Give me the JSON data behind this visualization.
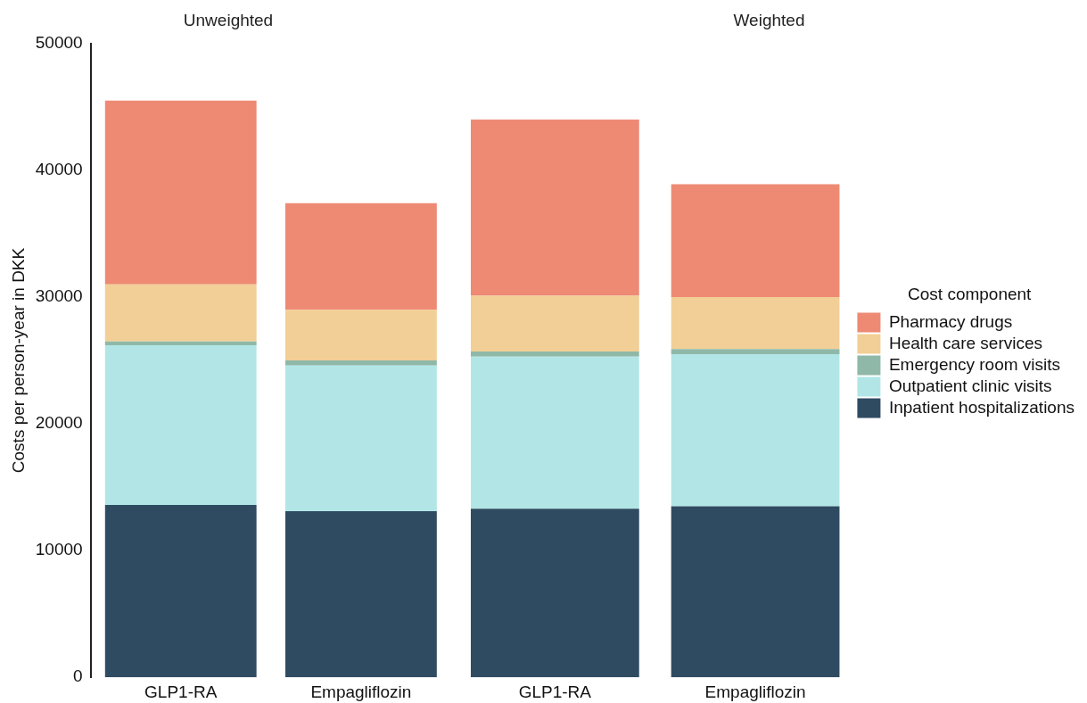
{
  "chart_data": [
    {
      "type": "bar",
      "title": "Unweighted",
      "ylabel": "Costs per person-year in DKK",
      "categories": [
        "GLP1-RA",
        "Empagliflozin"
      ],
      "stacked": true,
      "ylim": [
        0,
        50000
      ],
      "yticks": [
        0,
        10000,
        20000,
        30000,
        40000,
        50000
      ],
      "grid": false,
      "legend": false,
      "series": [
        {
          "color": "#2f4b62",
          "values": [
            13600,
            13100
          ]
        },
        {
          "color": "#b2e6e6",
          "values": [
            12600,
            11500
          ]
        },
        {
          "color": "#8fb8a8",
          "values": [
            300,
            400
          ]
        },
        {
          "color": "#f2cf96",
          "values": [
            4500,
            4000
          ]
        },
        {
          "color": "#ee8a74",
          "values": [
            14500,
            8400
          ]
        }
      ]
    },
    {
      "type": "bar",
      "title": "Weighted",
      "legend_title": "Cost component",
      "categories": [
        "GLP1-RA",
        "Empagliflozin"
      ],
      "stacked": true,
      "ylim": [
        0,
        50000
      ],
      "yticks": [
        0,
        10000,
        20000,
        30000,
        40000,
        50000
      ],
      "tick_labels": "x",
      "grid": false,
      "legend": "right",
      "series": [
        {
          "name": "Inpatient hospitalizations",
          "color": "#2f4b62",
          "values": [
            13300,
            13500
          ]
        },
        {
          "name": "Outpatient clinic visits",
          "color": "#b2e6e6",
          "values": [
            12000,
            12000
          ]
        },
        {
          "name": "Emergency room visits",
          "color": "#8fb8a8",
          "values": [
            400,
            400
          ]
        },
        {
          "name": "Health care services",
          "color": "#f2cf96",
          "values": [
            4400,
            4100
          ]
        },
        {
          "name": "Pharmacy drugs",
          "color": "#ee8a74",
          "values": [
            13900,
            8900
          ]
        }
      ]
    }
  ]
}
